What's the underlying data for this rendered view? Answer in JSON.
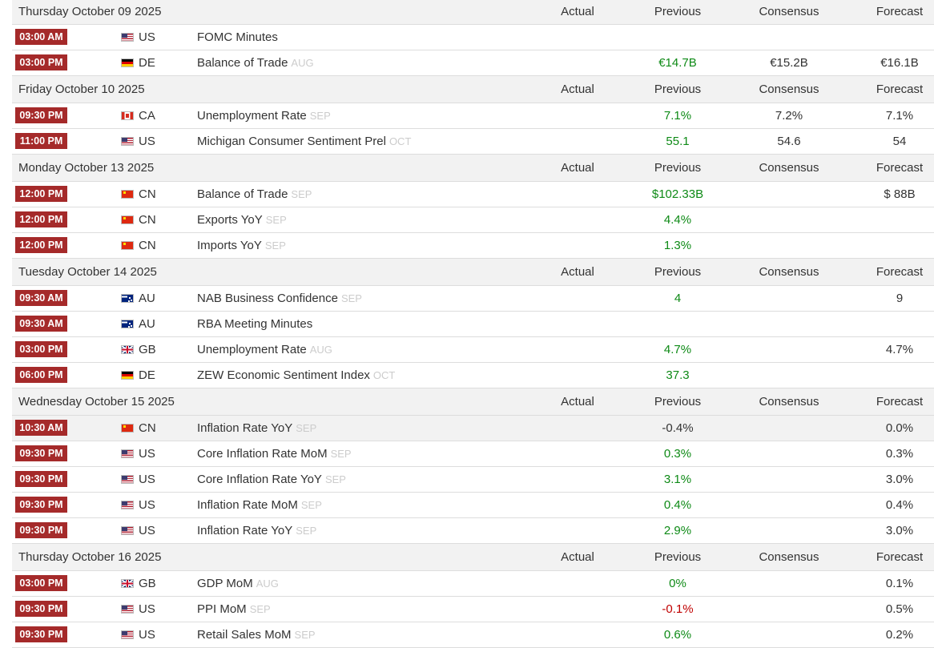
{
  "headers": {
    "actual": "Actual",
    "previous": "Previous",
    "consensus": "Consensus",
    "forecast": "Forecast"
  },
  "colors": {
    "time_badge": "#a52a2a",
    "positive": "#0e8a16",
    "negative": "#c00000",
    "header_bg": "#f2f2f2"
  },
  "days": [
    {
      "date": "Thursday October 09 2025",
      "events": [
        {
          "time": "03:00 AM",
          "country": "US",
          "event": "FOMC Minutes",
          "ref": "",
          "actual": "",
          "previous": "",
          "previous_tone": "plain",
          "consensus": "",
          "forecast": ""
        },
        {
          "time": "03:00 PM",
          "country": "DE",
          "event": "Balance of Trade",
          "ref": "AUG",
          "actual": "",
          "previous": "€14.7B",
          "previous_tone": "green",
          "consensus": "€15.2B",
          "forecast": "€16.1B"
        }
      ]
    },
    {
      "date": "Friday October 10 2025",
      "events": [
        {
          "time": "09:30 PM",
          "country": "CA",
          "event": "Unemployment Rate",
          "ref": "SEP",
          "actual": "",
          "previous": "7.1%",
          "previous_tone": "green",
          "consensus": "7.2%",
          "forecast": "7.1%"
        },
        {
          "time": "11:00 PM",
          "country": "US",
          "event": "Michigan Consumer Sentiment Prel",
          "ref": "OCT",
          "actual": "",
          "previous": "55.1",
          "previous_tone": "green",
          "consensus": "54.6",
          "forecast": "54"
        }
      ]
    },
    {
      "date": "Monday October 13 2025",
      "events": [
        {
          "time": "12:00 PM",
          "country": "CN",
          "event": "Balance of Trade",
          "ref": "SEP",
          "actual": "",
          "previous": "$102.33B",
          "previous_tone": "green",
          "consensus": "",
          "forecast": "$ 88B"
        },
        {
          "time": "12:00 PM",
          "country": "CN",
          "event": "Exports YoY",
          "ref": "SEP",
          "actual": "",
          "previous": "4.4%",
          "previous_tone": "green",
          "consensus": "",
          "forecast": ""
        },
        {
          "time": "12:00 PM",
          "country": "CN",
          "event": "Imports YoY",
          "ref": "SEP",
          "actual": "",
          "previous": "1.3%",
          "previous_tone": "green",
          "consensus": "",
          "forecast": ""
        }
      ]
    },
    {
      "date": "Tuesday October 14 2025",
      "events": [
        {
          "time": "09:30 AM",
          "country": "AU",
          "event": "NAB Business Confidence",
          "ref": "SEP",
          "actual": "",
          "previous": "4",
          "previous_tone": "green",
          "consensus": "",
          "forecast": "9"
        },
        {
          "time": "09:30 AM",
          "country": "AU",
          "event": "RBA Meeting Minutes",
          "ref": "",
          "actual": "",
          "previous": "",
          "previous_tone": "plain",
          "consensus": "",
          "forecast": ""
        },
        {
          "time": "03:00 PM",
          "country": "GB",
          "event": "Unemployment Rate",
          "ref": "AUG",
          "actual": "",
          "previous": "4.7%",
          "previous_tone": "green",
          "consensus": "",
          "forecast": "4.7%"
        },
        {
          "time": "06:00 PM",
          "country": "DE",
          "event": "ZEW Economic Sentiment Index",
          "ref": "OCT",
          "actual": "",
          "previous": "37.3",
          "previous_tone": "green",
          "consensus": "",
          "forecast": ""
        }
      ]
    },
    {
      "date": "Wednesday October 15 2025",
      "events": [
        {
          "time": "10:30 AM",
          "country": "CN",
          "event": "Inflation Rate YoY",
          "ref": "SEP",
          "actual": "",
          "previous": "-0.4%",
          "previous_tone": "plain",
          "consensus": "",
          "forecast": "0.0%",
          "highlight": true
        },
        {
          "time": "09:30 PM",
          "country": "US",
          "event": "Core Inflation Rate MoM",
          "ref": "SEP",
          "actual": "",
          "previous": "0.3%",
          "previous_tone": "green",
          "consensus": "",
          "forecast": "0.3%"
        },
        {
          "time": "09:30 PM",
          "country": "US",
          "event": "Core Inflation Rate YoY",
          "ref": "SEP",
          "actual": "",
          "previous": "3.1%",
          "previous_tone": "green",
          "consensus": "",
          "forecast": "3.0%"
        },
        {
          "time": "09:30 PM",
          "country": "US",
          "event": "Inflation Rate MoM",
          "ref": "SEP",
          "actual": "",
          "previous": "0.4%",
          "previous_tone": "green",
          "consensus": "",
          "forecast": "0.4%"
        },
        {
          "time": "09:30 PM",
          "country": "US",
          "event": "Inflation Rate YoY",
          "ref": "SEP",
          "actual": "",
          "previous": "2.9%",
          "previous_tone": "green",
          "consensus": "",
          "forecast": "3.0%"
        }
      ]
    },
    {
      "date": "Thursday October 16 2025",
      "events": [
        {
          "time": "03:00 PM",
          "country": "GB",
          "event": "GDP MoM",
          "ref": "AUG",
          "actual": "",
          "previous": "0%",
          "previous_tone": "green",
          "consensus": "",
          "forecast": "0.1%"
        },
        {
          "time": "09:30 PM",
          "country": "US",
          "event": "PPI MoM",
          "ref": "SEP",
          "actual": "",
          "previous": "-0.1%",
          "previous_tone": "red",
          "consensus": "",
          "forecast": "0.5%"
        },
        {
          "time": "09:30 PM",
          "country": "US",
          "event": "Retail Sales MoM",
          "ref": "SEP",
          "actual": "",
          "previous": "0.6%",
          "previous_tone": "green",
          "consensus": "",
          "forecast": "0.2%"
        }
      ]
    }
  ]
}
